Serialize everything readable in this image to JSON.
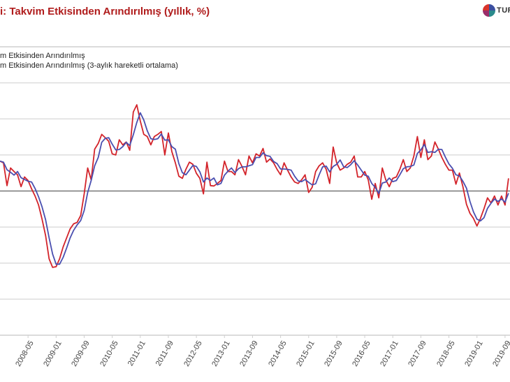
{
  "header": {
    "title": "i: Takvim Etkisinden Arındırılmış (yıllık, %)",
    "logo_text": "TUR"
  },
  "colors": {
    "series_red": "#d3232a",
    "series_blue": "#4a4fb0",
    "title": "#b01c1c",
    "zero_line": "#777777",
    "grid": "#dddddd"
  },
  "chart_data": {
    "type": "line",
    "title": "i: Takvim Etkisinden Arındırılmış (yıllık, %)",
    "xlabel": "",
    "ylabel": "",
    "ylim": [
      -40,
      40
    ],
    "y_gridlines": [
      -30,
      -20,
      -10,
      0,
      10,
      20,
      30
    ],
    "grid": true,
    "legend_position": "top-left",
    "x_tick_labels": [
      "2008-05",
      "2009-01",
      "2009-09",
      "2010-05",
      "2011-01",
      "2011-09",
      "2012-05",
      "2013-01",
      "2013-09",
      "2014-05",
      "2015-01",
      "2015-09",
      "2016-05",
      "2017-01",
      "2017-09",
      "2018-05",
      "2019-01",
      "2019-09"
    ],
    "x": [
      "2007-09",
      "2007-10",
      "2007-11",
      "2007-12",
      "2008-01",
      "2008-02",
      "2008-03",
      "2008-04",
      "2008-05",
      "2008-06",
      "2008-07",
      "2008-08",
      "2008-09",
      "2008-10",
      "2008-11",
      "2008-12",
      "2009-01",
      "2009-02",
      "2009-03",
      "2009-04",
      "2009-05",
      "2009-06",
      "2009-07",
      "2009-08",
      "2009-09",
      "2009-10",
      "2009-11",
      "2009-12",
      "2010-01",
      "2010-02",
      "2010-03",
      "2010-04",
      "2010-05",
      "2010-06",
      "2010-07",
      "2010-08",
      "2010-09",
      "2010-10",
      "2010-11",
      "2010-12",
      "2011-01",
      "2011-02",
      "2011-03",
      "2011-04",
      "2011-05",
      "2011-06",
      "2011-07",
      "2011-08",
      "2011-09",
      "2011-10",
      "2011-11",
      "2011-12",
      "2012-01",
      "2012-02",
      "2012-03",
      "2012-04",
      "2012-05",
      "2012-06",
      "2012-07",
      "2012-08",
      "2012-09",
      "2012-10",
      "2012-11",
      "2012-12",
      "2013-01",
      "2013-02",
      "2013-03",
      "2013-04",
      "2013-05",
      "2013-06",
      "2013-07",
      "2013-08",
      "2013-09",
      "2013-10",
      "2013-11",
      "2013-12",
      "2014-01",
      "2014-02",
      "2014-03",
      "2014-04",
      "2014-05",
      "2014-06",
      "2014-07",
      "2014-08",
      "2014-09",
      "2014-10",
      "2014-11",
      "2014-12",
      "2015-01",
      "2015-02",
      "2015-03",
      "2015-04",
      "2015-05",
      "2015-06",
      "2015-07",
      "2015-08",
      "2015-09",
      "2015-10",
      "2015-11",
      "2015-12",
      "2016-01",
      "2016-02",
      "2016-03",
      "2016-04",
      "2016-05",
      "2016-06",
      "2016-07",
      "2016-08",
      "2016-09",
      "2016-10",
      "2016-11",
      "2016-12",
      "2017-01",
      "2017-02",
      "2017-03",
      "2017-04",
      "2017-05",
      "2017-06",
      "2017-07",
      "2017-08",
      "2017-09",
      "2017-10",
      "2017-11",
      "2017-12",
      "2018-01",
      "2018-02",
      "2018-03",
      "2018-04",
      "2018-05",
      "2018-06",
      "2018-07",
      "2018-08",
      "2018-09",
      "2018-10",
      "2018-11",
      "2018-12",
      "2019-01",
      "2019-02",
      "2019-03",
      "2019-04",
      "2019-05",
      "2019-06",
      "2019-07",
      "2019-08",
      "2019-09",
      "2019-10"
    ],
    "series": [
      {
        "name": "m Etkisinden Arındırılmış",
        "color": "#d3232a",
        "values": [
          8.3,
          7.8,
          1.5,
          6.4,
          5.4,
          4.5,
          1.2,
          3.9,
          2.9,
          0.6,
          -1.4,
          -3.9,
          -7.8,
          -12.4,
          -18.8,
          -21.2,
          -21.0,
          -18.8,
          -15.5,
          -13.0,
          -10.5,
          -9.1,
          -8.7,
          -6.8,
          -0.8,
          6.4,
          3.1,
          11.6,
          13.2,
          15.7,
          14.8,
          13.8,
          10.3,
          10.0,
          14.2,
          12.8,
          13.6,
          11.3,
          21.9,
          23.9,
          19.4,
          15.7,
          15.1,
          12.8,
          15.1,
          15.7,
          16.5,
          10.0,
          16.1,
          10.9,
          7.8,
          4.1,
          3.5,
          6.0,
          8.0,
          7.4,
          4.9,
          3.5,
          -0.8,
          8.0,
          1.5,
          1.4,
          2.1,
          2.9,
          8.3,
          5.4,
          5.4,
          4.5,
          8.7,
          6.8,
          4.5,
          9.7,
          7.8,
          10.3,
          9.7,
          11.8,
          8.0,
          8.9,
          7.8,
          6.0,
          4.5,
          7.8,
          5.8,
          3.9,
          2.5,
          2.1,
          3.1,
          4.5,
          -0.4,
          1.0,
          5.4,
          7.0,
          7.8,
          6.0,
          2.1,
          12.2,
          7.8,
          5.8,
          6.4,
          7.4,
          8.0,
          9.7,
          3.9,
          3.9,
          5.4,
          3.1,
          -2.3,
          2.1,
          -1.9,
          6.4,
          3.1,
          1.2,
          3.5,
          3.9,
          6.0,
          8.7,
          5.4,
          6.4,
          9.7,
          15.1,
          9.3,
          14.2,
          8.7,
          9.7,
          13.6,
          11.6,
          9.3,
          7.4,
          5.8,
          5.8,
          1.9,
          5.0,
          1.2,
          -3.7,
          -6.2,
          -7.6,
          -9.7,
          -7.6,
          -4.9,
          -1.9,
          -3.3,
          -1.4,
          -3.9,
          -1.4,
          -3.9,
          3.5
        ]
      },
      {
        "name": "m Etkisinden Arındırılmış (3-aylık hareketli ortalama)",
        "color": "#4a4fb0",
        "values": [
          8.3,
          8.0,
          5.9,
          5.2,
          4.4,
          5.4,
          3.7,
          3.2,
          2.7,
          2.5,
          0.7,
          -1.6,
          -4.4,
          -8.0,
          -13.0,
          -17.5,
          -20.3,
          -20.3,
          -18.4,
          -15.8,
          -13.0,
          -10.9,
          -9.4,
          -8.2,
          -5.4,
          -0.4,
          2.9,
          7.0,
          9.3,
          13.5,
          14.6,
          14.8,
          13.0,
          11.4,
          11.5,
          12.3,
          13.5,
          12.6,
          15.6,
          19.0,
          21.7,
          19.7,
          16.7,
          14.5,
          14.3,
          14.5,
          15.8,
          14.1,
          14.2,
          12.3,
          11.6,
          7.6,
          5.1,
          4.5,
          5.8,
          7.1,
          6.8,
          5.3,
          2.5,
          3.6,
          2.9,
          3.6,
          1.7,
          2.1,
          4.4,
          5.5,
          6.4,
          5.1,
          6.2,
          6.7,
          6.7,
          7.0,
          7.3,
          9.3,
          9.3,
          10.6,
          9.8,
          9.6,
          8.2,
          7.6,
          6.1,
          6.1,
          6.0,
          5.8,
          4.1,
          2.8,
          2.6,
          3.2,
          2.4,
          1.7,
          2.0,
          4.5,
          6.7,
          6.9,
          5.3,
          6.8,
          7.4,
          8.6,
          6.7,
          6.5,
          7.3,
          8.4,
          7.2,
          5.8,
          4.4,
          4.1,
          2.1,
          1.0,
          -0.7,
          2.2,
          2.5,
          3.6,
          2.6,
          2.9,
          4.5,
          6.2,
          6.7,
          6.8,
          7.2,
          10.4,
          11.4,
          12.9,
          10.7,
          10.9,
          10.7,
          11.6,
          11.5,
          9.4,
          7.5,
          6.3,
          4.5,
          4.2,
          2.7,
          0.8,
          -2.9,
          -5.8,
          -7.8,
          -8.3,
          -7.4,
          -4.8,
          -3.4,
          -2.2,
          -2.9,
          -2.2,
          -3.1,
          -0.6
        ]
      }
    ]
  }
}
